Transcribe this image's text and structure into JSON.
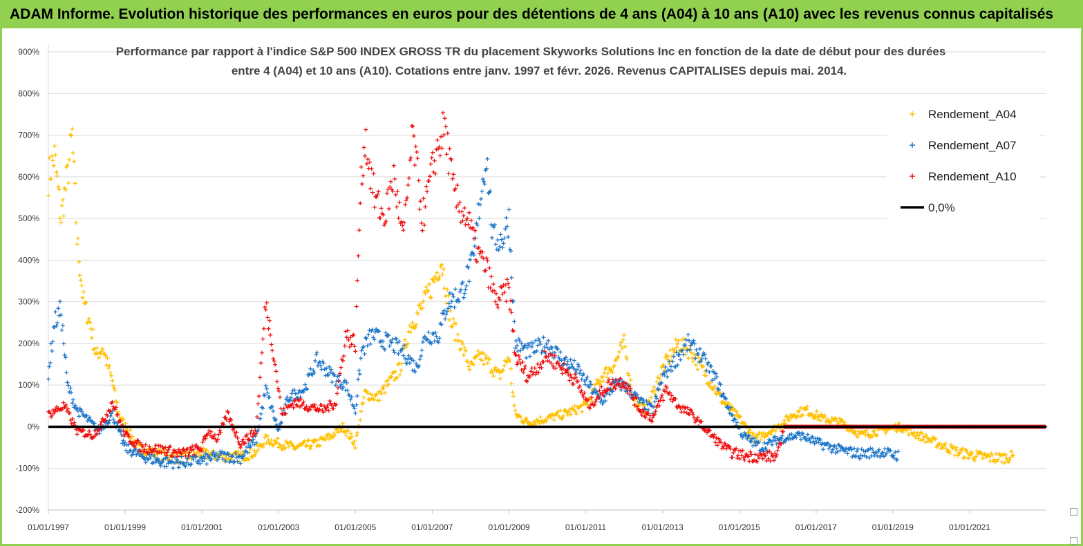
{
  "banner_title": "ADAM Informe. Evolution historique des performances en euros pour des détentions de 4 ans (A04) à 10 ans (A10) avec les revenus connus capitalisés",
  "chart_data": {
    "type": "scatter",
    "title_lines": [
      "Performance par rapport à l'indice S&P  500 INDEX GROSS TR  du placement Skyworks Solutions Inc en fonction de la date de début pour des durées",
      "entre 4 (A04) et 10 ans (A10).  Cotations entre janv. 1997 et févr. 2026. Revenus CAPITALISES depuis mai. 2014."
    ],
    "x_axis": {
      "type": "date",
      "range": [
        "1997-01-01",
        "2023-01-01"
      ],
      "tick_labels": [
        "01/01/1997",
        "01/01/1999",
        "01/01/2001",
        "01/01/2003",
        "01/01/2005",
        "01/01/2007",
        "01/01/2009",
        "01/01/2011",
        "01/01/2013",
        "01/01/2015",
        "01/01/2017",
        "01/01/2019",
        "01/01/2021"
      ]
    },
    "y_axis": {
      "unit": "%",
      "range": [
        -200,
        900
      ],
      "tick_labels": [
        "900%",
        "800%",
        "700%",
        "600%",
        "500%",
        "400%",
        "300%",
        "200%",
        "100%",
        "0%",
        "-100%",
        "-200%"
      ]
    },
    "grid": "horizontal",
    "legend_position": "right",
    "marker": "+",
    "series": [
      {
        "name": "Rendement_A04",
        "color": "#ffc000",
        "points": [
          [
            "1997-01-01",
            600
          ],
          [
            "1997-03-01",
            650
          ],
          [
            "1997-05-01",
            500
          ],
          [
            "1997-07-01",
            600
          ],
          [
            "1997-08-15",
            700
          ],
          [
            "1997-10-01",
            450
          ],
          [
            "1997-12-01",
            300
          ],
          [
            "1998-02-01",
            250
          ],
          [
            "1998-04-01",
            170
          ],
          [
            "1998-06-01",
            190
          ],
          [
            "1998-09-01",
            110
          ],
          [
            "1998-11-01",
            30
          ],
          [
            "1999-02-01",
            -10
          ],
          [
            "1999-05-01",
            -50
          ],
          [
            "1999-09-01",
            -60
          ],
          [
            "2000-01-01",
            -70
          ],
          [
            "2000-06-01",
            -75
          ],
          [
            "2001-01-01",
            -65
          ],
          [
            "2001-06-01",
            -70
          ],
          [
            "2002-01-01",
            -72
          ],
          [
            "2002-06-01",
            -60
          ],
          [
            "2002-09-01",
            -30
          ],
          [
            "2003-01-01",
            -40
          ],
          [
            "2003-06-01",
            -50
          ],
          [
            "2004-01-01",
            -40
          ],
          [
            "2004-06-01",
            -20
          ],
          [
            "2004-09-01",
            0
          ],
          [
            "2005-01-01",
            -40
          ],
          [
            "2005-04-01",
            80
          ],
          [
            "2005-08-01",
            70
          ],
          [
            "2005-12-01",
            110
          ],
          [
            "2006-03-01",
            140
          ],
          [
            "2006-06-01",
            240
          ],
          [
            "2006-10-01",
            290
          ],
          [
            "2007-01-01",
            340
          ],
          [
            "2007-04-01",
            400
          ],
          [
            "2007-07-01",
            250
          ],
          [
            "2007-10-01",
            200
          ],
          [
            "2008-01-01",
            140
          ],
          [
            "2008-04-01",
            170
          ],
          [
            "2008-07-01",
            150
          ],
          [
            "2008-10-01",
            120
          ],
          [
            "2009-01-01",
            170
          ],
          [
            "2009-03-01",
            30
          ],
          [
            "2009-07-01",
            10
          ],
          [
            "2010-01-01",
            20
          ],
          [
            "2010-06-01",
            30
          ],
          [
            "2011-01-01",
            50
          ],
          [
            "2011-06-01",
            120
          ],
          [
            "2011-10-01",
            150
          ],
          [
            "2012-01-01",
            200
          ],
          [
            "2012-04-01",
            60
          ],
          [
            "2012-08-01",
            40
          ],
          [
            "2013-01-01",
            140
          ],
          [
            "2013-06-01",
            200
          ],
          [
            "2013-10-01",
            180
          ],
          [
            "2014-03-01",
            120
          ],
          [
            "2014-08-01",
            60
          ],
          [
            "2015-01-01",
            20
          ],
          [
            "2015-06-01",
            -30
          ],
          [
            "2016-01-01",
            0
          ],
          [
            "2016-06-01",
            30
          ],
          [
            "2016-10-01",
            40
          ],
          [
            "2017-03-01",
            20
          ],
          [
            "2017-09-01",
            10
          ],
          [
            "2018-03-01",
            -20
          ],
          [
            "2018-09-01",
            -10
          ],
          [
            "2019-03-01",
            0
          ],
          [
            "2019-09-01",
            -20
          ],
          [
            "2020-03-01",
            -40
          ],
          [
            "2020-09-01",
            -60
          ],
          [
            "2021-03-01",
            -70
          ],
          [
            "2021-09-01",
            -75
          ],
          [
            "2022-03-01",
            -72
          ]
        ]
      },
      {
        "name": "Rendement_A07",
        "color": "#1f77c9",
        "points": [
          [
            "1997-01-01",
            130
          ],
          [
            "1997-03-01",
            250
          ],
          [
            "1997-05-01",
            280
          ],
          [
            "1997-07-01",
            100
          ],
          [
            "1997-10-01",
            40
          ],
          [
            "1998-01-01",
            20
          ],
          [
            "1998-05-01",
            -10
          ],
          [
            "1998-09-01",
            30
          ],
          [
            "1999-01-01",
            -50
          ],
          [
            "1999-06-01",
            -70
          ],
          [
            "2000-01-01",
            -85
          ],
          [
            "2000-07-01",
            -85
          ],
          [
            "2001-01-01",
            -80
          ],
          [
            "2001-07-01",
            -70
          ],
          [
            "2002-01-01",
            -75
          ],
          [
            "2002-06-01",
            -30
          ],
          [
            "2002-09-01",
            90
          ],
          [
            "2003-01-01",
            -10
          ],
          [
            "2003-04-01",
            70
          ],
          [
            "2003-09-01",
            90
          ],
          [
            "2004-01-01",
            160
          ],
          [
            "2004-06-01",
            120
          ],
          [
            "2004-10-01",
            100
          ],
          [
            "2005-01-01",
            40
          ],
          [
            "2005-03-01",
            180
          ],
          [
            "2005-06-01",
            220
          ],
          [
            "2005-12-01",
            200
          ],
          [
            "2006-04-01",
            180
          ],
          [
            "2006-08-01",
            140
          ],
          [
            "2006-11-01",
            220
          ],
          [
            "2007-03-01",
            220
          ],
          [
            "2007-06-01",
            300
          ],
          [
            "2007-10-01",
            320
          ],
          [
            "2008-02-01",
            400
          ],
          [
            "2008-04-01",
            550
          ],
          [
            "2008-06-01",
            650
          ],
          [
            "2008-08-01",
            450
          ],
          [
            "2008-11-01",
            450
          ],
          [
            "2009-01-01",
            500
          ],
          [
            "2009-03-01",
            200
          ],
          [
            "2009-07-01",
            180
          ],
          [
            "2010-01-01",
            200
          ],
          [
            "2010-06-01",
            160
          ],
          [
            "2010-10-01",
            140
          ],
          [
            "2011-03-01",
            90
          ],
          [
            "2011-06-01",
            60
          ],
          [
            "2011-10-01",
            100
          ],
          [
            "2012-01-01",
            100
          ],
          [
            "2012-06-01",
            60
          ],
          [
            "2012-10-01",
            40
          ],
          [
            "2013-01-01",
            120
          ],
          [
            "2013-06-01",
            170
          ],
          [
            "2013-09-01",
            200
          ],
          [
            "2014-01-01",
            170
          ],
          [
            "2014-06-01",
            110
          ],
          [
            "2014-10-01",
            40
          ],
          [
            "2015-02-01",
            -20
          ],
          [
            "2015-08-01",
            -50
          ],
          [
            "2016-01-01",
            -30
          ],
          [
            "2016-08-01",
            -20
          ],
          [
            "2017-02-01",
            -40
          ],
          [
            "2017-08-01",
            -55
          ],
          [
            "2018-03-01",
            -65
          ],
          [
            "2018-09-01",
            -60
          ],
          [
            "2019-03-01",
            -70
          ]
        ]
      },
      {
        "name": "Rendement_A10",
        "color": "#ee1111",
        "points": [
          [
            "1997-01-01",
            30
          ],
          [
            "1997-06-01",
            50
          ],
          [
            "1997-10-01",
            -10
          ],
          [
            "1998-03-01",
            -20
          ],
          [
            "1998-06-01",
            10
          ],
          [
            "1998-09-01",
            60
          ],
          [
            "1999-01-01",
            -20
          ],
          [
            "1999-06-01",
            -50
          ],
          [
            "2000-01-01",
            -55
          ],
          [
            "2000-07-01",
            -65
          ],
          [
            "2001-01-01",
            -50
          ],
          [
            "2001-03-01",
            -10
          ],
          [
            "2001-06-01",
            -30
          ],
          [
            "2001-09-01",
            30
          ],
          [
            "2002-01-01",
            -40
          ],
          [
            "2002-06-01",
            -10
          ],
          [
            "2002-09-01",
            300
          ],
          [
            "2002-11-01",
            200
          ],
          [
            "2003-02-01",
            30
          ],
          [
            "2003-06-01",
            60
          ],
          [
            "2003-10-01",
            50
          ],
          [
            "2004-03-01",
            40
          ],
          [
            "2004-07-01",
            60
          ],
          [
            "2004-10-01",
            220
          ],
          [
            "2005-01-01",
            200
          ],
          [
            "2005-02-15",
            550
          ],
          [
            "2005-04-01",
            700
          ],
          [
            "2005-07-01",
            550
          ],
          [
            "2005-10-01",
            500
          ],
          [
            "2006-01-01",
            600
          ],
          [
            "2006-04-01",
            450
          ],
          [
            "2006-07-01",
            700
          ],
          [
            "2006-10-01",
            500
          ],
          [
            "2007-02-01",
            650
          ],
          [
            "2007-05-01",
            720
          ],
          [
            "2007-08-01",
            550
          ],
          [
            "2007-12-01",
            500
          ],
          [
            "2008-03-01",
            420
          ],
          [
            "2008-06-01",
            380
          ],
          [
            "2008-09-01",
            300
          ],
          [
            "2009-01-01",
            330
          ],
          [
            "2009-03-01",
            170
          ],
          [
            "2009-07-01",
            120
          ],
          [
            "2010-01-01",
            170
          ],
          [
            "2010-06-01",
            140
          ],
          [
            "2010-10-01",
            110
          ],
          [
            "2011-02-01",
            50
          ],
          [
            "2011-08-01",
            100
          ],
          [
            "2012-01-01",
            110
          ],
          [
            "2012-06-01",
            40
          ],
          [
            "2012-10-01",
            20
          ],
          [
            "2013-02-01",
            90
          ],
          [
            "2013-06-01",
            50
          ],
          [
            "2013-10-01",
            30
          ],
          [
            "2014-03-01",
            -10
          ],
          [
            "2014-07-01",
            -40
          ],
          [
            "2014-10-01",
            -60
          ],
          [
            "2015-03-01",
            -70
          ],
          [
            "2015-09-01",
            -72
          ],
          [
            "2016-01-01",
            -70
          ],
          [
            "2016-03-01",
            0
          ],
          [
            "2018-01-01",
            0
          ],
          [
            "2020-01-01",
            0
          ],
          [
            "2022-12-31",
            0
          ]
        ]
      }
    ],
    "reference_line": {
      "name": "0,0%",
      "y": 0,
      "color": "#000000"
    }
  }
}
